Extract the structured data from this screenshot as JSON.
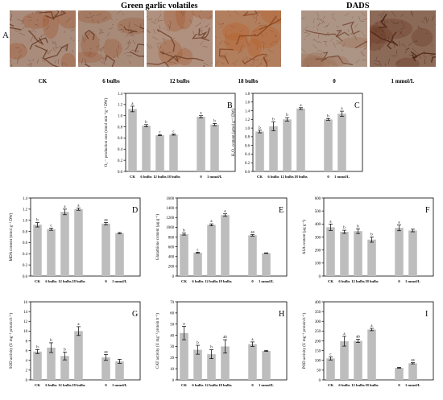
{
  "figure": {
    "header_green": "Green garlic volatiles",
    "header_dads": "DADS",
    "panel_a_letter": "A",
    "leaves": [
      {
        "label": "CK",
        "base": "#a98c7c",
        "vein": "#6a3a24",
        "stain": "#a0532b"
      },
      {
        "label": "6 bulbs",
        "base": "#a88a79",
        "vein": "#6b3b26",
        "stain": "#9b5a36"
      },
      {
        "label": "12 bulbs",
        "base": "#b0917f",
        "vein": "#6f4029",
        "stain": "#a6582e"
      },
      {
        "label": "18 bulbs",
        "base": "#b27f5e",
        "vein": "#8a4420",
        "stain": "#b65f26"
      },
      {
        "label": "0",
        "base": "#ad9585",
        "vein": "#754a34",
        "stain": "#9a6a50"
      },
      {
        "label": "1 mmol/L",
        "base": "#8c6a58",
        "vein": "#4a2214",
        "stain": "#6b3a24"
      }
    ]
  },
  "chart_data": [
    {
      "panel": "B",
      "type": "bar",
      "categories": [
        "CK",
        "6 bulbs",
        "12 bulbs",
        "18 bulbs",
        "0",
        "1 mmol/L"
      ],
      "values": [
        1.12,
        0.82,
        0.65,
        0.66,
        0.98,
        0.84
      ],
      "errors": [
        0.05,
        0.02,
        0.01,
        0.01,
        0.02,
        0.02
      ],
      "letters": [
        "a",
        "b",
        "c",
        "c",
        "a",
        "b"
      ],
      "ylabel": "O₂·⁻ production rate (nmol min⁻¹g⁻¹ DW)",
      "ylim": [
        0,
        1.4
      ],
      "yticks": [
        0.0,
        0.2,
        0.4,
        0.6,
        0.8,
        1.0,
        1.2,
        1.4
      ],
      "ydec": 1
    },
    {
      "panel": "C",
      "type": "bar",
      "categories": [
        "CK",
        "6 bulbs",
        "12 bulbs",
        "18 bulbs",
        "0",
        "1 mmol/L"
      ],
      "values": [
        0.92,
        1.04,
        1.2,
        1.45,
        1.2,
        1.33
      ],
      "errors": [
        0.03,
        0.1,
        0.04,
        0.02,
        0.02,
        0.06
      ],
      "letters": [
        "b",
        "b",
        "b",
        "a",
        "b",
        "a"
      ],
      "ylabel": "H₂O₂ content (μmol g⁻¹ DW)",
      "ylim": [
        0,
        1.8
      ],
      "yticks": [
        0.0,
        0.2,
        0.4,
        0.6,
        0.8,
        1.0,
        1.2,
        1.4,
        1.6,
        1.8
      ],
      "ydec": 1
    },
    {
      "panel": "D",
      "type": "bar",
      "categories": [
        "CK",
        "6 bulbs",
        "12 bulbs",
        "18 bulbs",
        "0",
        "1 mmol/L"
      ],
      "values": [
        0.92,
        0.84,
        1.15,
        1.2,
        0.94,
        0.77
      ],
      "errors": [
        0.04,
        0.02,
        0.05,
        0.02,
        0.02,
        0.01
      ],
      "letters": [
        "b",
        "c",
        "a",
        "a",
        "aa",
        ""
      ],
      "ylabel": "MDA content (nmol g⁻¹ DW)",
      "ylim": [
        0,
        1.4
      ],
      "yticks": [
        0.0,
        0.2,
        0.4,
        0.6,
        0.8,
        1.0,
        1.2,
        1.4
      ],
      "ydec": 1
    },
    {
      "panel": "E",
      "type": "bar",
      "categories": [
        "CK",
        "6 bulbs",
        "12 bulbs",
        "18 bulbs",
        "0",
        "1 mmol/L"
      ],
      "values": [
        860,
        480,
        1050,
        1250,
        835,
        470
      ],
      "errors": [
        20,
        10,
        20,
        25,
        15,
        5
      ],
      "letters": [
        "b",
        "c",
        "a",
        "a",
        "aa",
        ""
      ],
      "ylabel": "Glutathione content (μg g⁻¹)",
      "ylim": [
        0,
        1600
      ],
      "yticks": [
        0,
        200,
        400,
        600,
        800,
        1000,
        1200,
        1400,
        1600
      ],
      "ydec": 0
    },
    {
      "panel": "F",
      "type": "bar",
      "categories": [
        "CK",
        "6 bulbs",
        "12 bulbs",
        "18 bulbs",
        "0",
        "1 mmol/L"
      ],
      "values": [
        375,
        340,
        345,
        280,
        370,
        350
      ],
      "errors": [
        25,
        12,
        18,
        20,
        22,
        10
      ],
      "letters": [
        "a",
        "b",
        "b",
        "b",
        "a",
        ""
      ],
      "ylabel": "ASA content (μg g⁻¹)",
      "ylim": [
        0,
        600
      ],
      "yticks": [
        0,
        100,
        200,
        300,
        400,
        500,
        600
      ],
      "ydec": 0
    },
    {
      "panel": "G",
      "type": "bar",
      "categories": [
        "CK",
        "6 bulbs",
        "12 bulbs",
        "18 bulbs",
        "0",
        "1 mmol/L"
      ],
      "values": [
        5.8,
        6.6,
        4.9,
        10.0,
        4.6,
        3.8
      ],
      "errors": [
        0.4,
        1.0,
        0.8,
        0.9,
        0.6,
        0.4
      ],
      "letters": [
        "b",
        "b",
        "b",
        "a",
        "aa",
        ""
      ],
      "ylabel": "SOD activity (U mg⁻¹ protein h⁻¹)",
      "ylim": [
        0,
        16
      ],
      "yticks": [
        0,
        2,
        4,
        6,
        8,
        10,
        12,
        14,
        16
      ],
      "ydec": 0
    },
    {
      "panel": "H",
      "type": "bar",
      "categories": [
        "CK",
        "6 bulbs",
        "12 bulbs",
        "18 bulbs",
        "0",
        "1 mmol/L"
      ],
      "values": [
        42,
        27,
        23,
        30,
        32,
        26
      ],
      "errors": [
        6,
        4,
        4,
        6,
        2,
        0.5
      ],
      "letters": [
        "a",
        "b",
        "b",
        "ab",
        "a",
        ""
      ],
      "ylabel": "CAT activity (U mg⁻¹ protein h⁻¹)",
      "ylim": [
        0,
        70
      ],
      "yticks": [
        0,
        10,
        20,
        30,
        40,
        50,
        60,
        70
      ],
      "ydec": 0
    },
    {
      "panel": "I",
      "type": "bar",
      "categories": [
        "CK",
        "6 bulbs",
        "12 bulbs",
        "18 bulbs",
        "0",
        "1 mmol/L"
      ],
      "values": [
        110,
        198,
        200,
        258,
        62,
        85
      ],
      "errors": [
        8,
        25,
        8,
        6,
        2,
        3
      ],
      "letters": [
        "c",
        "a",
        "ab",
        "a",
        "",
        "aa"
      ],
      "ylabel": "POD activity (U mg⁻¹ protein h⁻¹)",
      "ylim": [
        0,
        400
      ],
      "yticks": [
        0,
        50,
        100,
        150,
        200,
        250,
        300,
        350,
        400
      ],
      "ydec": 0
    }
  ]
}
